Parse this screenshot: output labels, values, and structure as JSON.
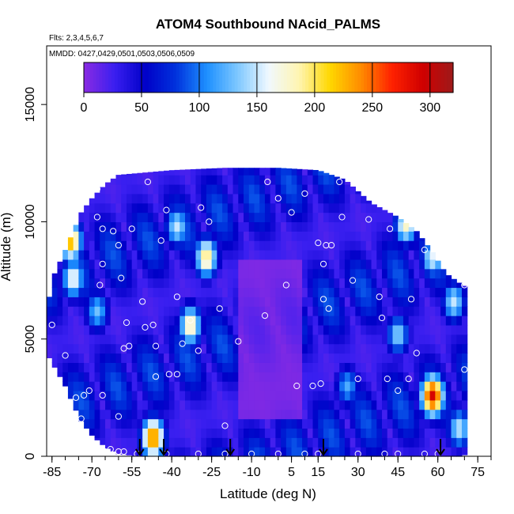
{
  "chart_data": {
    "type": "heatmap",
    "title": "ATOM4 Southbound NAcid_PALMS",
    "flights_note": "Flts: 2,3,4,5,6,7",
    "dates_note": "MMDD: 0427,0429,0501,0503,0506,0509",
    "xlabel": "Latitude (deg N)",
    "ylabel": "Altitude (m)",
    "xlim": [
      -87,
      80
    ],
    "ylim": [
      0,
      17500
    ],
    "x_ticks": [
      -85,
      -70,
      -55,
      -40,
      -25,
      -10,
      5,
      15,
      30,
      45,
      60,
      75
    ],
    "x_tick_labels": [
      "-85",
      "-70",
      "-55",
      "-40",
      "-25",
      "-10",
      "5",
      "15",
      "30",
      "45",
      "60",
      "75"
    ],
    "x_minor_step": 5,
    "y_ticks": [
      0,
      5000,
      10000,
      15000
    ],
    "y_tick_labels": [
      "0",
      "5000",
      "10000",
      "15000"
    ],
    "colorbar": {
      "min": 0,
      "max": 320,
      "ticks": [
        0,
        50,
        100,
        150,
        200,
        250,
        300
      ],
      "tick_labels": [
        "0",
        "50",
        "100",
        "150",
        "200",
        "250",
        "300"
      ],
      "colors": [
        "#8a2be2",
        "#3a1ff0",
        "#0000c8",
        "#0033dd",
        "#1e90ff",
        "#7ec8ff",
        "#f0f8ff",
        "#fff5b0",
        "#ffd700",
        "#ff8c00",
        "#ff2200",
        "#d00000",
        "#9e1a1a"
      ]
    },
    "profile_latitudes": [
      -52,
      -43,
      -18,
      17,
      61
    ],
    "envelope": [
      {
        "lat": -86,
        "bottom": 4200,
        "top": 6800
      },
      {
        "lat": -84,
        "bottom": 3800,
        "top": 7800
      },
      {
        "lat": -80,
        "bottom": 3000,
        "top": 8800
      },
      {
        "lat": -77,
        "bottom": 2200,
        "top": 9600
      },
      {
        "lat": -74,
        "bottom": 1500,
        "top": 10400
      },
      {
        "lat": -70,
        "bottom": 900,
        "top": 11000
      },
      {
        "lat": -65,
        "bottom": 400,
        "top": 11600
      },
      {
        "lat": -60,
        "bottom": 100,
        "top": 12000
      },
      {
        "lat": -50,
        "bottom": 0,
        "top": 12100
      },
      {
        "lat": -40,
        "bottom": 0,
        "top": 12200
      },
      {
        "lat": -20,
        "bottom": 0,
        "top": 12300
      },
      {
        "lat": 0,
        "bottom": 0,
        "top": 12300
      },
      {
        "lat": 15,
        "bottom": 0,
        "top": 12200
      },
      {
        "lat": 25,
        "bottom": 0,
        "top": 11800
      },
      {
        "lat": 35,
        "bottom": 0,
        "top": 10800
      },
      {
        "lat": 45,
        "bottom": 0,
        "top": 10200
      },
      {
        "lat": 52,
        "bottom": 0,
        "top": 9600
      },
      {
        "lat": 58,
        "bottom": 0,
        "top": 8700
      },
      {
        "lat": 63,
        "bottom": 0,
        "top": 7800
      },
      {
        "lat": 68,
        "bottom": 0,
        "top": 7400
      },
      {
        "lat": 71,
        "bottom": 100,
        "top": 7200
      }
    ],
    "hotspots": [
      {
        "lat": -78,
        "alt": 9200,
        "value": 230
      },
      {
        "lat": -77,
        "alt": 7600,
        "value": 170
      },
      {
        "lat": -68,
        "alt": 6200,
        "value": 130
      },
      {
        "lat": -27,
        "alt": 8500,
        "value": 200
      },
      {
        "lat": -38,
        "alt": 9800,
        "value": 150
      },
      {
        "lat": -47,
        "alt": 800,
        "value": 250
      },
      {
        "lat": -33,
        "alt": 5600,
        "value": 190
      },
      {
        "lat": 26,
        "alt": 3000,
        "value": 120
      },
      {
        "lat": 45,
        "alt": 5200,
        "value": 140
      },
      {
        "lat": 48,
        "alt": 9900,
        "value": 180
      },
      {
        "lat": 58,
        "alt": 2600,
        "value": 290
      },
      {
        "lat": 58,
        "alt": 8500,
        "value": 160
      },
      {
        "lat": 66,
        "alt": 6600,
        "value": 150
      },
      {
        "lat": 68,
        "alt": 1200,
        "value": 150
      }
    ],
    "obs_points": [
      {
        "lat": -85,
        "alt": 5600
      },
      {
        "lat": -80,
        "alt": 4300
      },
      {
        "lat": -76,
        "alt": 2500
      },
      {
        "lat": -74,
        "alt": 1600
      },
      {
        "lat": -73,
        "alt": 2600
      },
      {
        "lat": -71,
        "alt": 2800
      },
      {
        "lat": -66,
        "alt": 2600
      },
      {
        "lat": -65,
        "alt": 200
      },
      {
        "lat": -63,
        "alt": 300
      },
      {
        "lat": -60,
        "alt": 200
      },
      {
        "lat": -58,
        "alt": 4600
      },
      {
        "lat": -57,
        "alt": 5700
      },
      {
        "lat": -56,
        "alt": 4700
      },
      {
        "lat": -68,
        "alt": 10200
      },
      {
        "lat": -66,
        "alt": 9700
      },
      {
        "lat": -67,
        "alt": 7300
      },
      {
        "lat": -66,
        "alt": 8200
      },
      {
        "lat": -62,
        "alt": 9600
      },
      {
        "lat": -60,
        "alt": 9000
      },
      {
        "lat": -59,
        "alt": 7600
      },
      {
        "lat": -55,
        "alt": 9700
      },
      {
        "lat": -51,
        "alt": 6600
      },
      {
        "lat": -50,
        "alt": 5500
      },
      {
        "lat": -47,
        "alt": 5600
      },
      {
        "lat": -46,
        "alt": 4700
      },
      {
        "lat": -46,
        "alt": 3400
      },
      {
        "lat": -41,
        "alt": 3500
      },
      {
        "lat": -44,
        "alt": 9200
      },
      {
        "lat": -42,
        "alt": 10500
      },
      {
        "lat": -38,
        "alt": 6800
      },
      {
        "lat": -36,
        "alt": 4800
      },
      {
        "lat": -33,
        "alt": 5800
      },
      {
        "lat": -30,
        "alt": 4500
      },
      {
        "lat": -29,
        "alt": 10600
      },
      {
        "lat": -26,
        "alt": 10000
      },
      {
        "lat": -22,
        "alt": 6300
      },
      {
        "lat": -20,
        "alt": 1300
      },
      {
        "lat": -15,
        "alt": 4900
      },
      {
        "lat": -5,
        "alt": 6000
      },
      {
        "lat": -49,
        "alt": 11700
      },
      {
        "lat": -4,
        "alt": 11700
      },
      {
        "lat": -68,
        "alt": 11400
      },
      {
        "lat": 0,
        "alt": 11000
      },
      {
        "lat": 5,
        "alt": 10400
      },
      {
        "lat": 3,
        "alt": 7300
      },
      {
        "lat": 7,
        "alt": 3000
      },
      {
        "lat": 13,
        "alt": 3000
      },
      {
        "lat": 16,
        "alt": 3100
      },
      {
        "lat": 17,
        "alt": 6700
      },
      {
        "lat": 19,
        "alt": 6300
      },
      {
        "lat": 17,
        "alt": 8200
      },
      {
        "lat": 18,
        "alt": 9000
      },
      {
        "lat": 15,
        "alt": 9100
      },
      {
        "lat": 20,
        "alt": 9000
      },
      {
        "lat": 23,
        "alt": 11700
      },
      {
        "lat": 24,
        "alt": 10200
      },
      {
        "lat": 28,
        "alt": 7500
      },
      {
        "lat": 30,
        "alt": 3300
      },
      {
        "lat": 34,
        "alt": 10100
      },
      {
        "lat": 38,
        "alt": 6800
      },
      {
        "lat": 39,
        "alt": 5900
      },
      {
        "lat": 42,
        "alt": 9700
      },
      {
        "lat": 45,
        "alt": 2800
      },
      {
        "lat": 49,
        "alt": 3300
      },
      {
        "lat": 52,
        "alt": 4400
      },
      {
        "lat": 55,
        "alt": 8800
      },
      {
        "lat": 50,
        "alt": 6700
      },
      {
        "lat": 41,
        "alt": 3300
      },
      {
        "lat": 70,
        "alt": 7300
      },
      {
        "lat": 70,
        "alt": 3700
      },
      {
        "lat": -58,
        "alt": 200
      },
      {
        "lat": -53,
        "alt": 100
      },
      {
        "lat": -42,
        "alt": 100
      },
      {
        "lat": -30,
        "alt": 100
      },
      {
        "lat": -20,
        "alt": 100
      },
      {
        "lat": -10,
        "alt": 100
      },
      {
        "lat": 0,
        "alt": 100
      },
      {
        "lat": 10,
        "alt": 100
      },
      {
        "lat": 15,
        "alt": 100
      },
      {
        "lat": 30,
        "alt": 100
      },
      {
        "lat": 40,
        "alt": 100
      },
      {
        "lat": 45,
        "alt": 100
      },
      {
        "lat": 55,
        "alt": 100
      },
      {
        "lat": 60,
        "alt": 100
      },
      {
        "lat": 10,
        "alt": 11200
      },
      {
        "lat": -38,
        "alt": 3500
      },
      {
        "lat": -60,
        "alt": 1700
      }
    ]
  }
}
